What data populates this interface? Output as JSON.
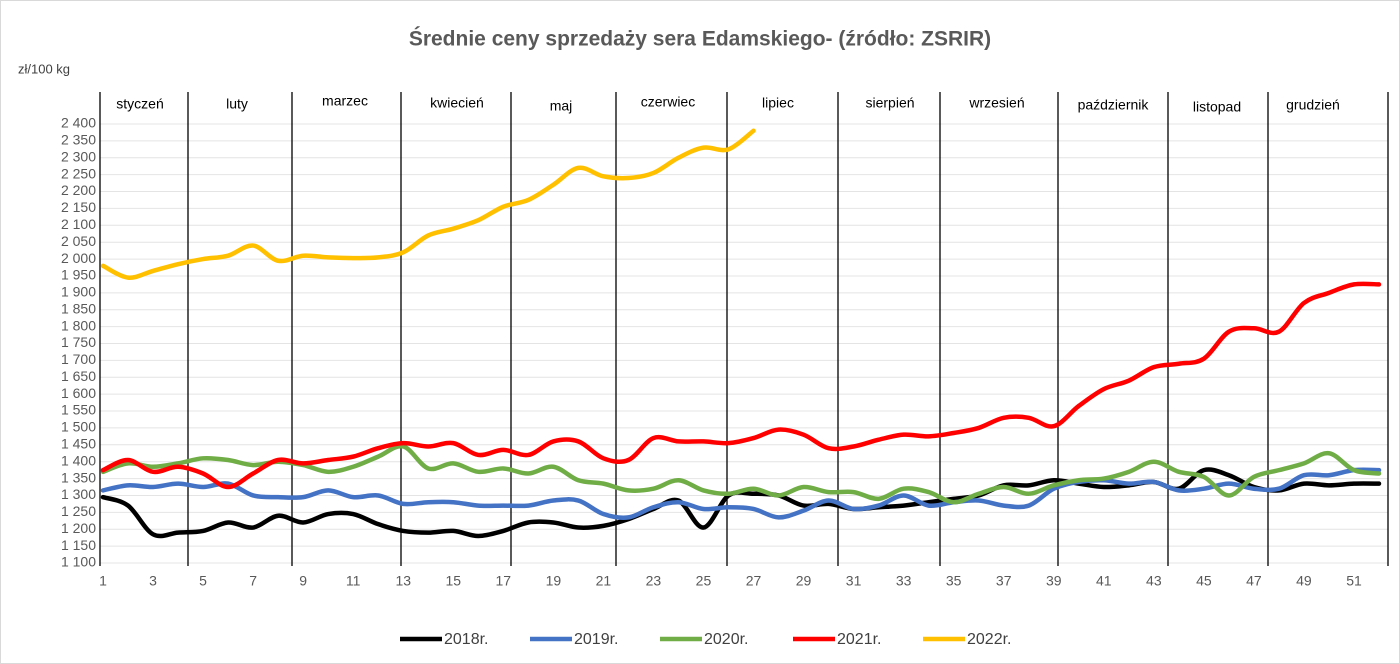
{
  "chart_data": {
    "type": "line",
    "title": "Średnie ceny sprzedaży sera Edamskiego- (źródło: ZSRIR)",
    "y_label": "zł/100 kg",
    "annotations": [
      "styczeń",
      "luty",
      "marzec",
      "kwiecień",
      "maj",
      "czerwiec",
      "lipiec",
      "sierpień",
      "wrzesień",
      "październik",
      "listopad",
      "grudzień"
    ],
    "x": [
      1,
      2,
      3,
      4,
      5,
      6,
      7,
      8,
      9,
      10,
      11,
      12,
      13,
      14,
      15,
      16,
      17,
      18,
      19,
      20,
      21,
      22,
      23,
      24,
      25,
      26,
      27,
      28,
      29,
      30,
      31,
      32,
      33,
      34,
      35,
      36,
      37,
      38,
      39,
      40,
      41,
      42,
      43,
      44,
      45,
      46,
      47,
      48,
      49,
      50,
      51,
      52
    ],
    "xlim": [
      1,
      52
    ],
    "xticks": [
      1,
      3,
      5,
      7,
      9,
      11,
      13,
      15,
      17,
      19,
      21,
      23,
      25,
      27,
      29,
      31,
      33,
      35,
      37,
      39,
      41,
      43,
      45,
      47,
      49,
      51
    ],
    "ylim": [
      1100,
      2400
    ],
    "yticks": [
      {
        "value": 1100,
        "label": "1 100"
      },
      {
        "value": 1150,
        "label": "1 150"
      },
      {
        "value": 1200,
        "label": "1 200"
      },
      {
        "value": 1250,
        "label": "1 250"
      },
      {
        "value": 1300,
        "label": "1 300"
      },
      {
        "value": 1350,
        "label": "1 350"
      },
      {
        "value": 1400,
        "label": "1 400"
      },
      {
        "value": 1450,
        "label": "1 450"
      },
      {
        "value": 1500,
        "label": "1 500"
      },
      {
        "value": 1550,
        "label": "1 550"
      },
      {
        "value": 1600,
        "label": "1 600"
      },
      {
        "value": 1650,
        "label": "1 650"
      },
      {
        "value": 1700,
        "label": "1 700"
      },
      {
        "value": 1750,
        "label": "1 750"
      },
      {
        "value": 1800,
        "label": "1 800"
      },
      {
        "value": 1850,
        "label": "1 850"
      },
      {
        "value": 1900,
        "label": "1 900"
      },
      {
        "value": 1950,
        "label": "1 950"
      },
      {
        "value": 2000,
        "label": "2 000"
      },
      {
        "value": 2050,
        "label": "2 050"
      },
      {
        "value": 2100,
        "label": "2 100"
      },
      {
        "value": 2150,
        "label": "2 150"
      },
      {
        "value": 2200,
        "label": "2 200"
      },
      {
        "value": 2250,
        "label": "2 250"
      },
      {
        "value": 2300,
        "label": "2 300"
      },
      {
        "value": 2350,
        "label": "2 350"
      },
      {
        "value": 2400,
        "label": "2 400"
      }
    ],
    "grid": true,
    "legend": "bottom",
    "series": [
      {
        "name": "2018r.",
        "color": "#000000",
        "values": [
          1295,
          1270,
          1185,
          1190,
          1195,
          1220,
          1205,
          1240,
          1220,
          1245,
          1245,
          1215,
          1195,
          1190,
          1195,
          1180,
          1195,
          1220,
          1220,
          1205,
          1210,
          1230,
          1260,
          1285,
          1205,
          1300,
          1305,
          1300,
          1270,
          1275,
          1260,
          1265,
          1270,
          1280,
          1290,
          1300,
          1330,
          1330,
          1345,
          1335,
          1325,
          1330,
          1340,
          1320,
          1375,
          1360,
          1325,
          1315,
          1335,
          1330,
          1335,
          1335
        ]
      },
      {
        "name": "2019r.",
        "color": "#4472c4",
        "values": [
          1315,
          1330,
          1325,
          1335,
          1325,
          1335,
          1300,
          1295,
          1295,
          1315,
          1295,
          1300,
          1275,
          1280,
          1280,
          1270,
          1270,
          1270,
          1285,
          1285,
          1245,
          1235,
          1265,
          1280,
          1260,
          1265,
          1260,
          1235,
          1255,
          1285,
          1260,
          1270,
          1300,
          1270,
          1280,
          1285,
          1270,
          1270,
          1320,
          1340,
          1345,
          1335,
          1340,
          1315,
          1320,
          1335,
          1320,
          1320,
          1360,
          1360,
          1375,
          1375
        ]
      },
      {
        "name": "2020r.",
        "color": "#70ad47",
        "values": [
          1370,
          1395,
          1385,
          1395,
          1410,
          1405,
          1390,
          1400,
          1390,
          1370,
          1385,
          1415,
          1445,
          1380,
          1395,
          1370,
          1380,
          1365,
          1385,
          1345,
          1335,
          1315,
          1320,
          1345,
          1315,
          1305,
          1320,
          1300,
          1325,
          1310,
          1310,
          1290,
          1320,
          1310,
          1280,
          1305,
          1325,
          1305,
          1330,
          1345,
          1350,
          1370,
          1400,
          1370,
          1355,
          1300,
          1355,
          1375,
          1395,
          1425,
          1375,
          1365
        ]
      },
      {
        "name": "2021r.",
        "color": "#ff0000",
        "values": [
          1375,
          1405,
          1370,
          1385,
          1365,
          1325,
          1365,
          1405,
          1395,
          1405,
          1415,
          1440,
          1455,
          1445,
          1455,
          1420,
          1435,
          1420,
          1460,
          1460,
          1410,
          1405,
          1470,
          1460,
          1460,
          1455,
          1470,
          1495,
          1480,
          1440,
          1445,
          1465,
          1480,
          1475,
          1485,
          1500,
          1530,
          1530,
          1505,
          1565,
          1615,
          1640,
          1680,
          1690,
          1705,
          1785,
          1795,
          1785,
          1870,
          1900,
          1925,
          1925
        ]
      },
      {
        "name": "2022r.",
        "color": "#ffc000",
        "values": [
          1980,
          1945,
          1965,
          1985,
          2000,
          2010,
          2040,
          1995,
          2010,
          2005,
          2003,
          2005,
          2020,
          2070,
          2090,
          2115,
          2155,
          2175,
          2220,
          2270,
          2245,
          2240,
          2255,
          2300,
          2330,
          2325,
          2380,
          null,
          null,
          null,
          null,
          null,
          null,
          null,
          null,
          null,
          null,
          null,
          null,
          null,
          null,
          null,
          null,
          null,
          null,
          null,
          null,
          null,
          null,
          null,
          null,
          null
        ]
      }
    ]
  }
}
